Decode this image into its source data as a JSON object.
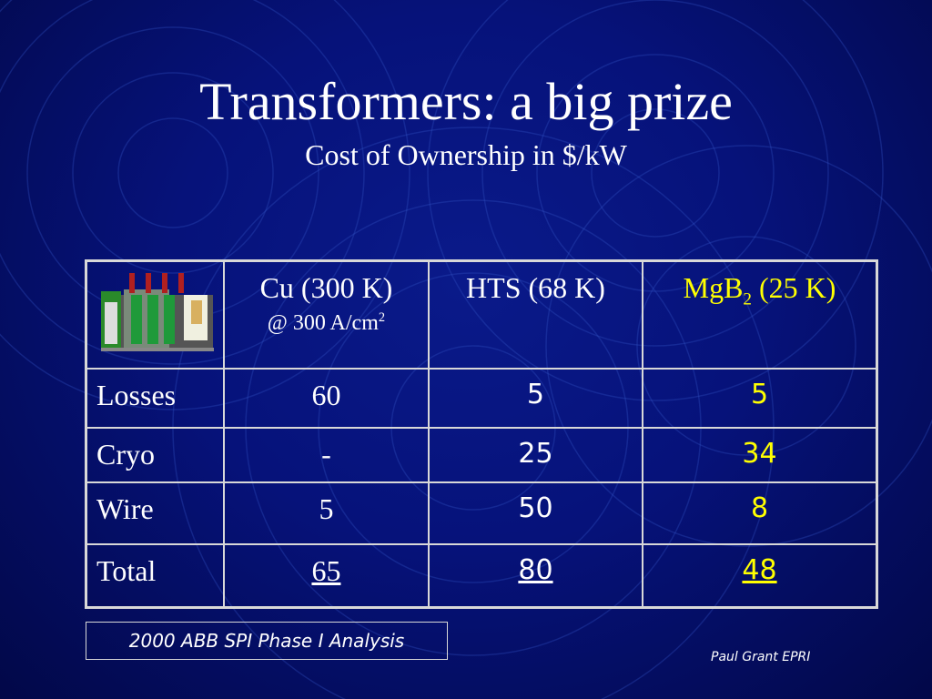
{
  "header": {
    "title": "Transformers: a big prize",
    "subtitle": "Cost of Ownership in $/kW"
  },
  "table": {
    "columns": [
      {
        "label": "Cu (300 K)",
        "note": "@ 300 A/cm",
        "note_sup": "2"
      },
      {
        "label": "HTS (68 K)"
      },
      {
        "label_base": "MgB",
        "label_sub": "2",
        "label_rest": " (25 K)"
      }
    ],
    "rows": [
      [
        "Losses",
        "60",
        "5",
        "5"
      ],
      [
        "Cryo",
        "-",
        "25",
        "34"
      ],
      [
        "Wire",
        "5",
        "50",
        "8"
      ],
      [
        "Total",
        "65",
        "80",
        "48"
      ]
    ]
  },
  "footer": {
    "source": "2000 ABB SPI Phase I Analysis",
    "credit": "Paul Grant EPRI"
  }
}
